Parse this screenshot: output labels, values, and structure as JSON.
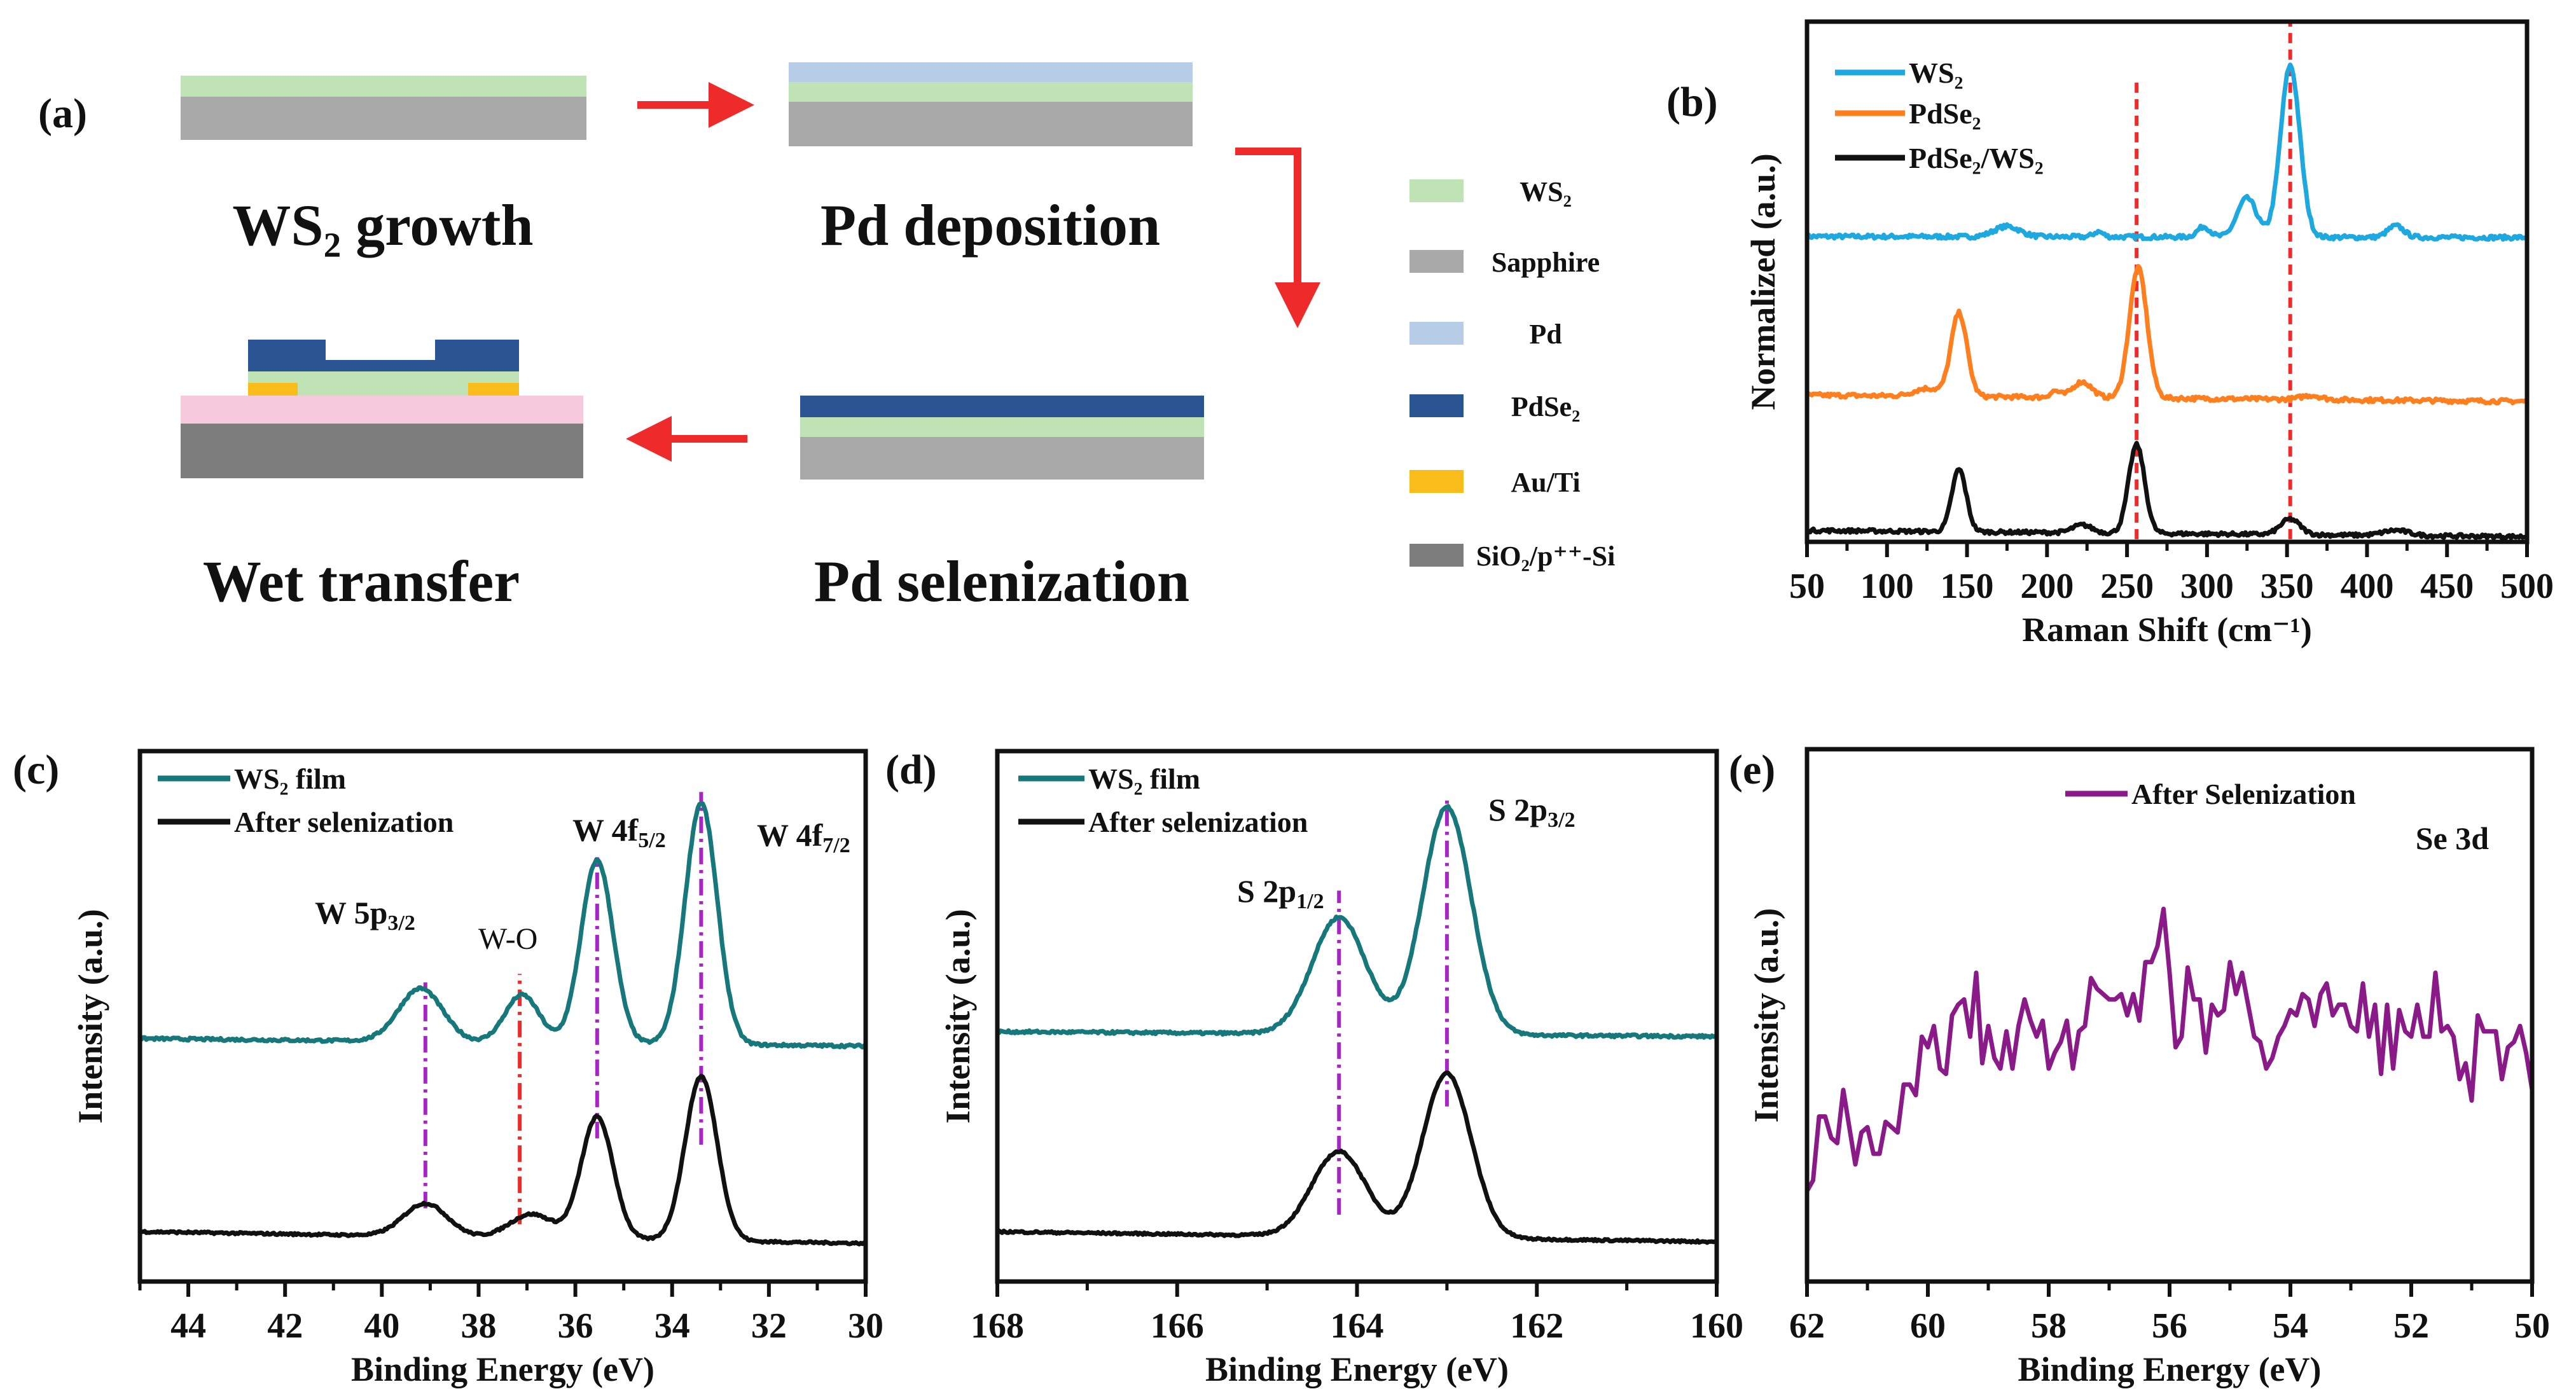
{
  "panel_a": {
    "label": "(a)",
    "steps": [
      "WS₂ growth",
      "Pd deposition",
      "Pd selenization",
      "Wet transfer"
    ],
    "legend": [
      {
        "label": "WS₂",
        "color": "#bfe3b4"
      },
      {
        "label": "Sapphire",
        "color": "#a9a9a9"
      },
      {
        "label": "Pd",
        "color": "#b7cce6"
      },
      {
        "label": "PdSe₂",
        "color": "#2b5592"
      },
      {
        "label": "Au/Ti",
        "color": "#f8bd1a"
      },
      {
        "label": "SiO₂/p⁺⁺-Si",
        "color": "#7d7d7d"
      }
    ],
    "extra_colors": {
      "sio2": "#f7c9dc",
      "arrow": "#ee2a2a"
    }
  },
  "chart_data": [
    {
      "panel": "(b)",
      "type": "line",
      "xlabel": "Raman Shift (cm⁻¹)",
      "ylabel": "Normalized (a.u.)",
      "xlim": [
        50,
        500
      ],
      "ylim": [
        0,
        1
      ],
      "xticks": [
        50,
        100,
        150,
        200,
        250,
        300,
        350,
        400,
        450,
        500
      ],
      "minor_step": 25,
      "series": [
        {
          "name": "WS₂",
          "color": "#1ea8e0",
          "base": [
            0.587,
            0.585
          ],
          "noise": 0.008,
          "peaks": [
            {
              "x": 352,
              "h": 0.33,
              "w": 6
            },
            {
              "x": 325,
              "h": 0.075,
              "w": 6
            },
            {
              "x": 298,
              "h": 0.02,
              "w": 4
            },
            {
              "x": 175,
              "h": 0.02,
              "w": 8
            },
            {
              "x": 232,
              "h": 0.01,
              "w": 3
            },
            {
              "x": 418,
              "h": 0.022,
              "w": 5
            }
          ]
        },
        {
          "name": "PdSe₂",
          "color": "#ff7f1e",
          "base": [
            0.282,
            0.27
          ],
          "noise": 0.008,
          "peaks": [
            {
              "x": 257,
              "h": 0.25,
              "w": 5.5
            },
            {
              "x": 145,
              "h": 0.16,
              "w": 5
            },
            {
              "x": 222,
              "h": 0.03,
              "w": 6
            },
            {
              "x": 205,
              "h": 0.012,
              "w": 3
            },
            {
              "x": 125,
              "h": 0.015,
              "w": 8
            },
            {
              "x": 365,
              "h": 0.008,
              "w": 6
            }
          ]
        },
        {
          "name": "PdSe₂/WS₂",
          "color": "#111111",
          "base": [
            0.022,
            0.01
          ],
          "noise": 0.007,
          "peaks": [
            {
              "x": 256,
              "h": 0.17,
              "w": 5
            },
            {
              "x": 145,
              "h": 0.12,
              "w": 4.5
            },
            {
              "x": 352,
              "h": 0.03,
              "w": 6
            },
            {
              "x": 222,
              "h": 0.015,
              "w": 6
            },
            {
              "x": 418,
              "h": 0.01,
              "w": 8
            }
          ]
        }
      ],
      "reference_lines": [
        {
          "x": 256,
          "y": [
            0.005,
            0.894
          ],
          "color": "#ee2a2a",
          "style": "dashed"
        },
        {
          "x": 352,
          "y": [
            0.005,
            1.0
          ],
          "color": "#ee2a2a",
          "style": "dashed"
        }
      ]
    },
    {
      "panel": "(c)",
      "type": "line",
      "xlabel": "Binding Energy (eV)",
      "ylabel": "Intensity (a.u.)",
      "xlim": [
        45,
        30
      ],
      "ylim": [
        0,
        1
      ],
      "xticks": [
        44,
        42,
        40,
        38,
        36,
        34,
        32,
        30
      ],
      "minor_step": 1,
      "series": [
        {
          "name": "WS₂ film",
          "color": "#16787a",
          "base": [
            0.458,
            0.444
          ],
          "noise": 0.005,
          "peaks": [
            {
              "x": 33.4,
              "h": 0.455,
              "w": 0.33
            },
            {
              "x": 35.55,
              "h": 0.345,
              "w": 0.33
            },
            {
              "x": 39.2,
              "h": 0.1,
              "w": 0.45
            },
            {
              "x": 37.1,
              "h": 0.09,
              "w": 0.35
            }
          ]
        },
        {
          "name": "After selenization",
          "color": "#111111",
          "base": [
            0.094,
            0.072
          ],
          "noise": 0.004,
          "peaks": [
            {
              "x": 33.4,
              "h": 0.31,
              "w": 0.33
            },
            {
              "x": 35.55,
              "h": 0.23,
              "w": 0.33
            },
            {
              "x": 39.1,
              "h": 0.062,
              "w": 0.45
            },
            {
              "x": 36.9,
              "h": 0.045,
              "w": 0.45
            }
          ]
        }
      ],
      "reference_lines": [
        {
          "x": 39.1,
          "y": [
            0.138,
            0.564
          ],
          "color": "#a526c2",
          "style": "dashdot"
        },
        {
          "x": 37.15,
          "y": [
            0.108,
            0.58
          ],
          "color": "#ee2a2a",
          "style": "dashdot"
        },
        {
          "x": 35.55,
          "y": [
            0.27,
            0.8
          ],
          "color": "#a526c2",
          "style": "dashdot"
        },
        {
          "x": 33.4,
          "y": [
            0.258,
            0.923
          ],
          "color": "#a526c2",
          "style": "dashdot"
        }
      ],
      "annotations": [
        {
          "main": "W 5p",
          "sub": "3/2"
        },
        {
          "main": "W-O",
          "sub": ""
        },
        {
          "main": "W 4f",
          "sub": "5/2"
        },
        {
          "main": "W 4f",
          "sub": "7/2"
        }
      ]
    },
    {
      "panel": "(d)",
      "type": "line",
      "xlabel": "Binding Energy (eV)",
      "ylabel": "Intensity (a.u.)",
      "xlim": [
        168,
        160
      ],
      "ylim": [
        0,
        1
      ],
      "xticks": [
        168,
        166,
        164,
        162,
        160
      ],
      "minor_step": 1,
      "series": [
        {
          "name": "WS₂ film",
          "color": "#16787a",
          "base": [
            0.471,
            0.462
          ],
          "noise": 0.005,
          "peaks": [
            {
              "x": 163.0,
              "h": 0.43,
              "w": 0.27
            },
            {
              "x": 164.2,
              "h": 0.22,
              "w": 0.3
            }
          ]
        },
        {
          "name": "After selenization",
          "color": "#111111",
          "base": [
            0.094,
            0.075
          ],
          "noise": 0.004,
          "peaks": [
            {
              "x": 163.0,
              "h": 0.31,
              "w": 0.27
            },
            {
              "x": 164.2,
              "h": 0.16,
              "w": 0.3
            }
          ]
        }
      ],
      "reference_lines": [
        {
          "x": 164.2,
          "y": [
            0.126,
            0.737
          ],
          "color": "#a526c2",
          "style": "dashdot"
        },
        {
          "x": 163.0,
          "y": [
            0.33,
            0.917
          ],
          "color": "#a526c2",
          "style": "dashdot"
        }
      ],
      "annotations": [
        {
          "main": "S 2p",
          "sub": "1/2"
        },
        {
          "main": "S 2p",
          "sub": "3/2"
        }
      ]
    },
    {
      "panel": "(e)",
      "type": "line",
      "xlabel": "Binding Energy (eV)",
      "ylabel": "Intensity (a.u.)",
      "xlim": [
        62,
        50
      ],
      "ylim": [
        0,
        1
      ],
      "xticks": [
        62,
        60,
        58,
        56,
        54,
        52,
        50
      ],
      "minor_step": 1,
      "annotation": "Se 3d",
      "series": [
        {
          "name": "After Selenization",
          "color": "#8b1a89",
          "x_start": 62.0,
          "x_step": -0.1,
          "y": [
            0.17,
            0.19,
            0.31,
            0.31,
            0.27,
            0.26,
            0.36,
            0.29,
            0.22,
            0.28,
            0.29,
            0.24,
            0.24,
            0.3,
            0.29,
            0.28,
            0.37,
            0.37,
            0.35,
            0.46,
            0.44,
            0.48,
            0.4,
            0.39,
            0.5,
            0.52,
            0.53,
            0.46,
            0.58,
            0.41,
            0.48,
            0.42,
            0.4,
            0.47,
            0.4,
            0.48,
            0.53,
            0.49,
            0.46,
            0.49,
            0.4,
            0.43,
            0.45,
            0.49,
            0.4,
            0.47,
            0.48,
            0.57,
            0.55,
            0.54,
            0.53,
            0.53,
            0.54,
            0.5,
            0.54,
            0.49,
            0.6,
            0.6,
            0.63,
            0.7,
            0.58,
            0.44,
            0.46,
            0.59,
            0.53,
            0.53,
            0.43,
            0.52,
            0.5,
            0.51,
            0.6,
            0.54,
            0.58,
            0.52,
            0.46,
            0.45,
            0.4,
            0.42,
            0.46,
            0.48,
            0.51,
            0.5,
            0.54,
            0.53,
            0.48,
            0.54,
            0.56,
            0.5,
            0.52,
            0.52,
            0.48,
            0.47,
            0.56,
            0.46,
            0.52,
            0.39,
            0.52,
            0.4,
            0.51,
            0.47,
            0.46,
            0.52,
            0.46,
            0.46,
            0.58,
            0.47,
            0.48,
            0.46,
            0.38,
            0.41,
            0.34,
            0.5,
            0.47,
            0.47,
            0.47,
            0.38,
            0.44,
            0.45,
            0.48,
            0.43,
            0.36
          ]
        }
      ]
    }
  ]
}
